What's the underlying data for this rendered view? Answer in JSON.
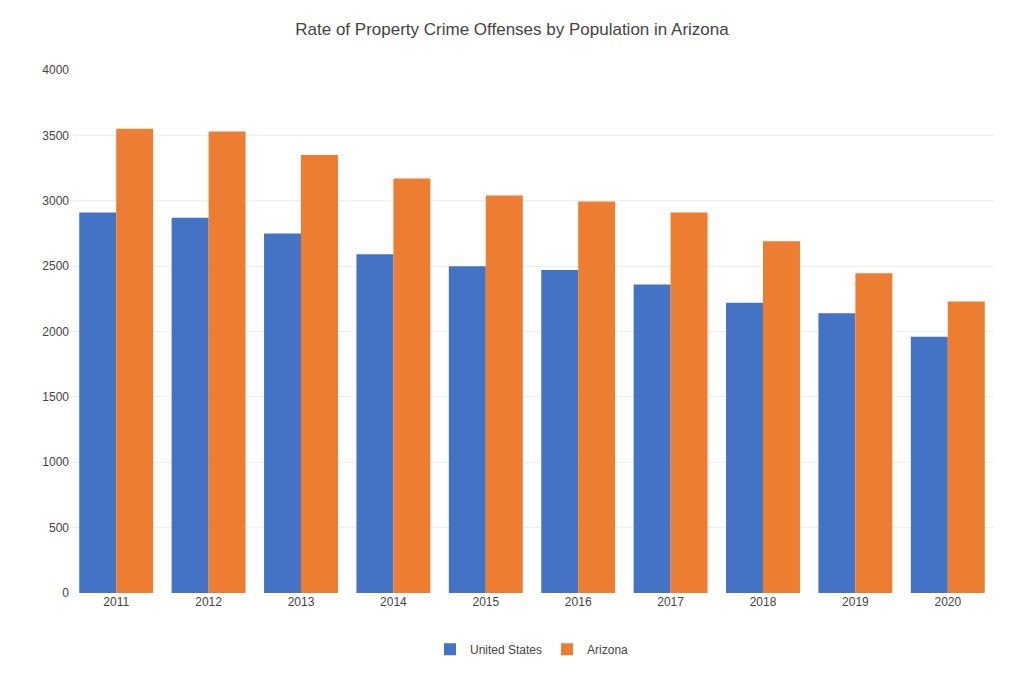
{
  "chart_data": {
    "type": "bar",
    "title": "Rate of Property Crime Offenses by Population in Arizona",
    "categories": [
      "2011",
      "2012",
      "2013",
      "2014",
      "2015",
      "2016",
      "2017",
      "2018",
      "2019",
      "2020"
    ],
    "series": [
      {
        "name": "United States",
        "color": "#4472C4",
        "values": [
          2910,
          2870,
          2750,
          2590,
          2500,
          2470,
          2360,
          2220,
          2140,
          1960
        ]
      },
      {
        "name": "Arizona",
        "color": "#ED7D31",
        "values": [
          3550,
          3530,
          3350,
          3170,
          3040,
          2995,
          2910,
          2690,
          2445,
          2230
        ]
      }
    ],
    "ylim": [
      0,
      4000
    ],
    "yticks": [
      0,
      500,
      1000,
      1500,
      2000,
      2500,
      3000,
      3500,
      4000
    ],
    "grid": true,
    "legend": "bottom"
  }
}
